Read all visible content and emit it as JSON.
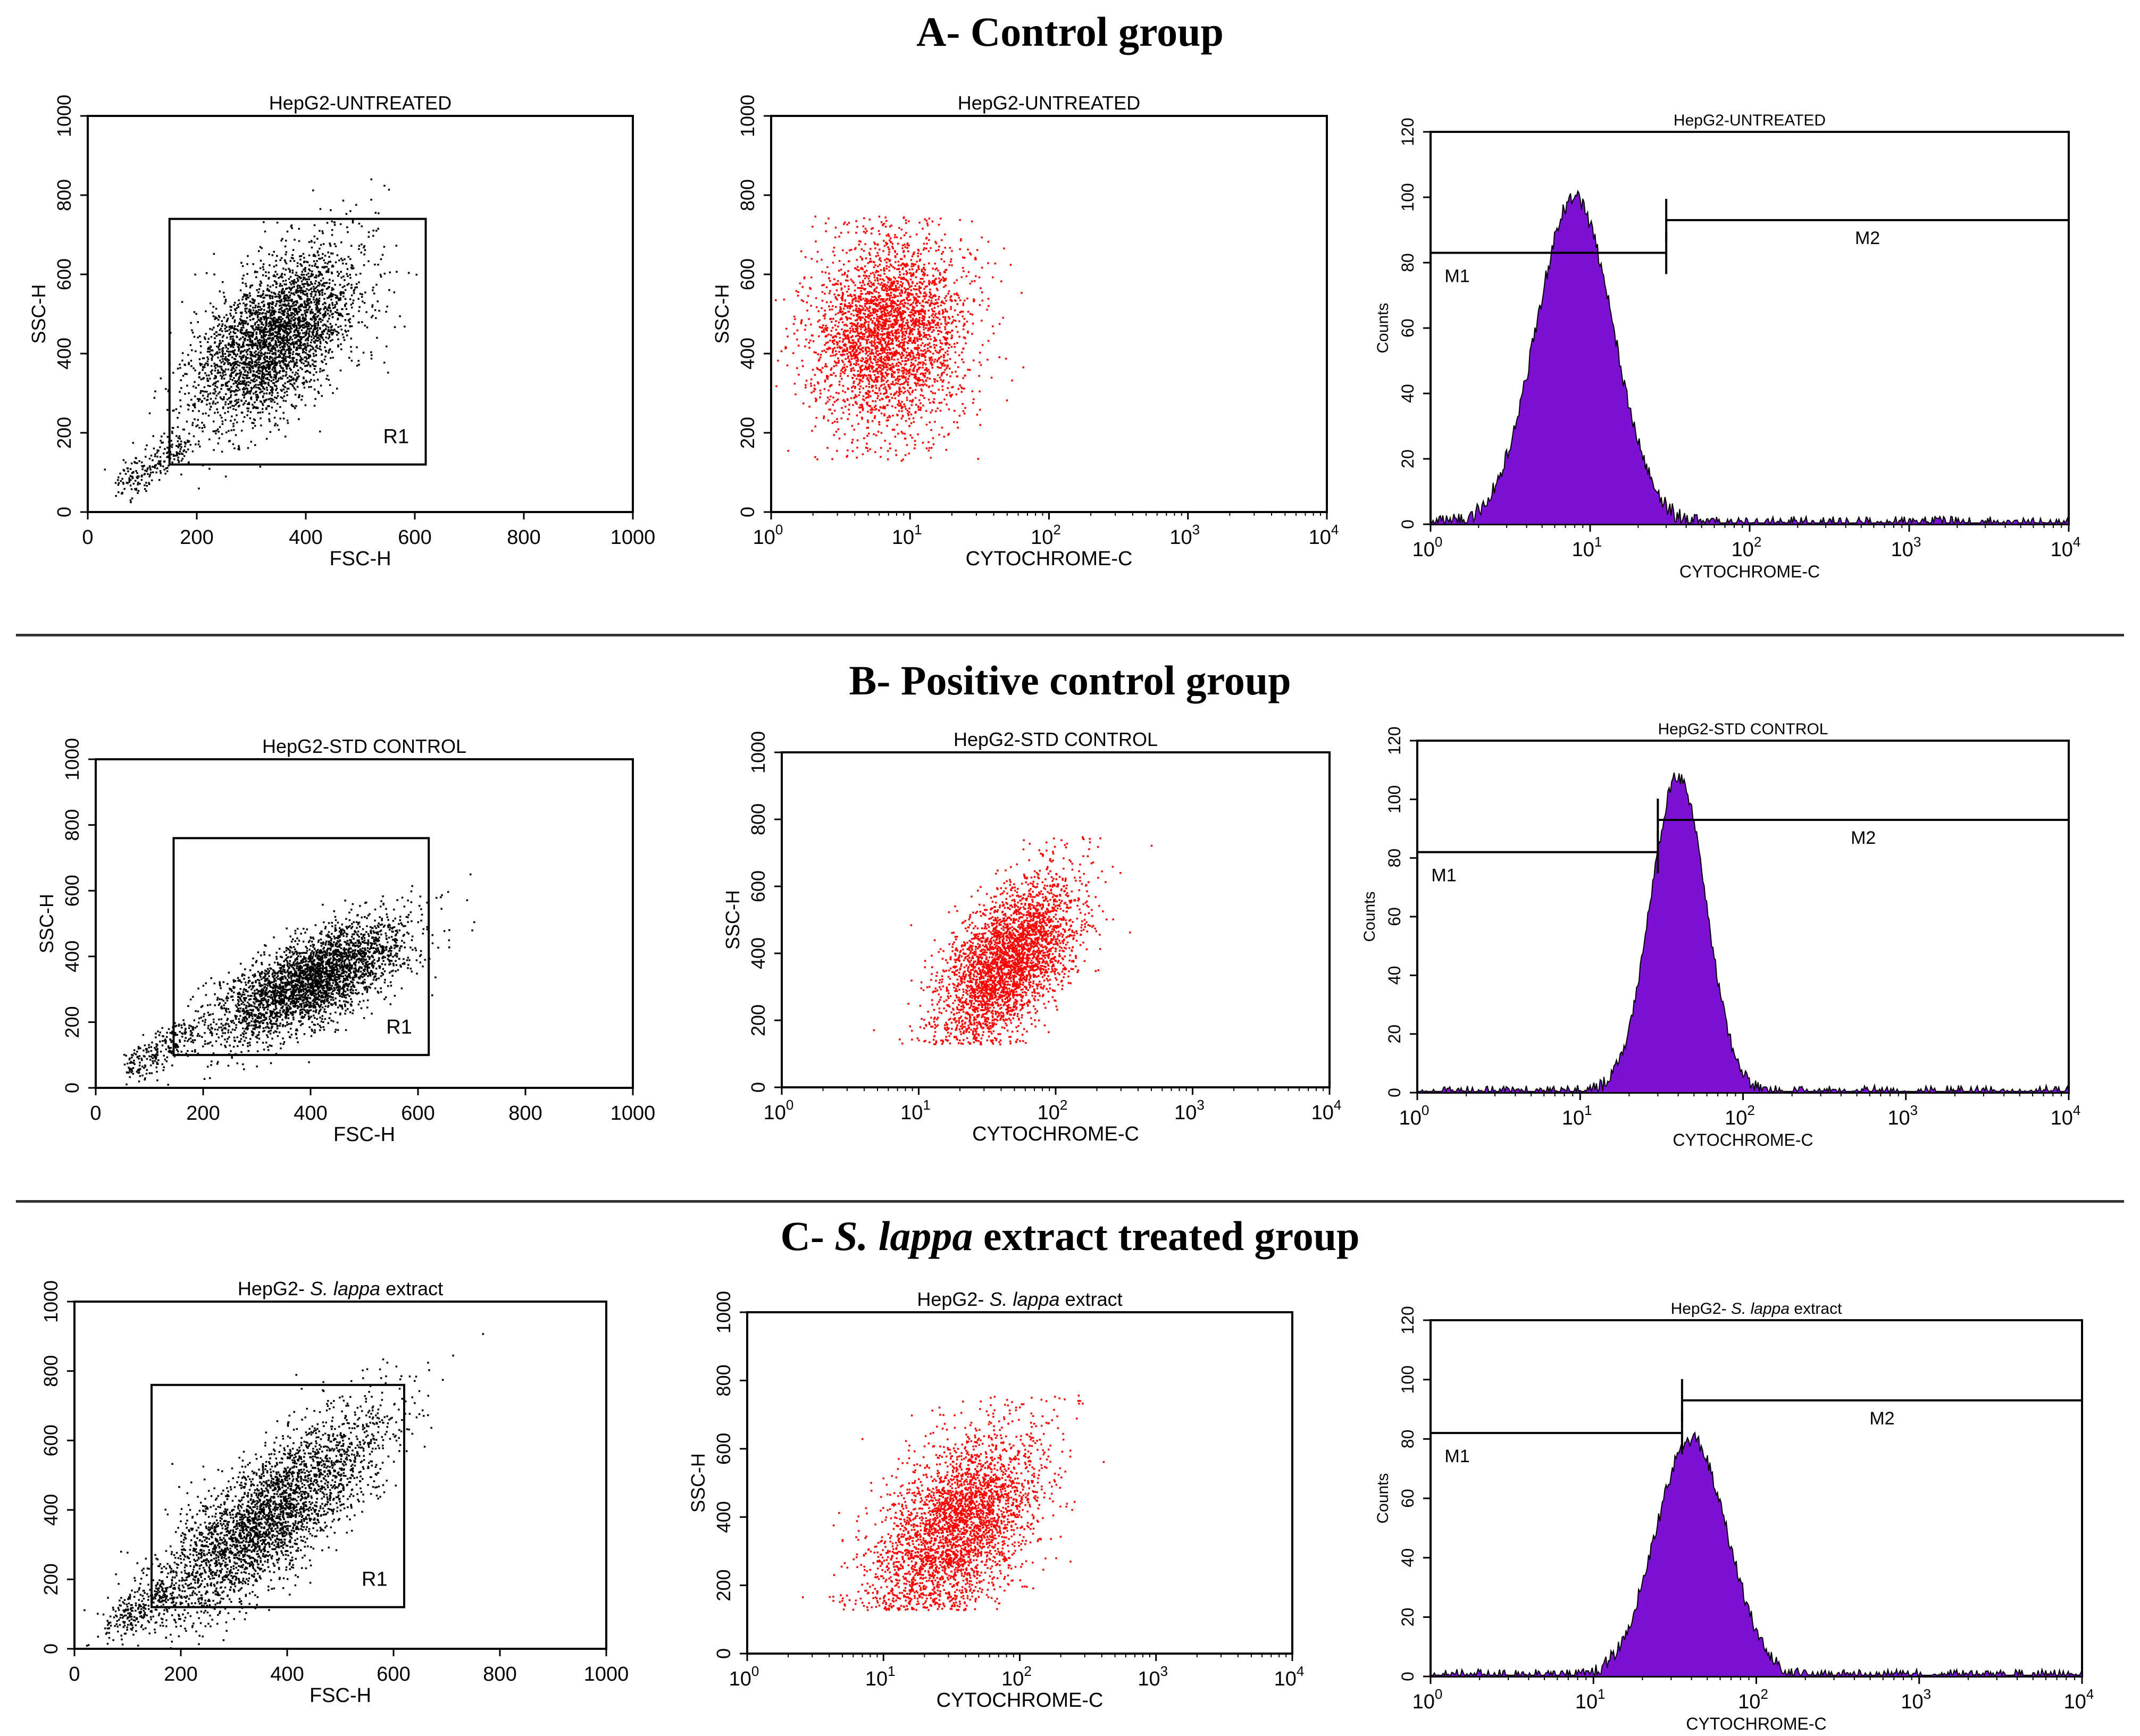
{
  "figure": {
    "accent_dot_color": "#ff0000",
    "fill_color": "#7e10d4",
    "sections": [
      {
        "title": "A- Control group",
        "panels": [
          {
            "type": "scatter",
            "title": "HepG2-UNTREATED",
            "xlabel": "FSC-H",
            "ylabel": "SSC-H",
            "xscale": "linear",
            "xlim": [
              0,
              1000
            ],
            "ylim": [
              0,
              1000
            ],
            "xticks": [
              "0",
              "200",
              "400",
              "600",
              "800",
              "1000"
            ],
            "yticks": [
              "0",
              "200",
              "400",
              "600",
              "800",
              "1000"
            ],
            "gate": {
              "label": "R1",
              "x": [
                150,
                620
              ],
              "y": [
                120,
                740
              ]
            },
            "cluster": {
              "center": [
                340,
                440
              ],
              "spread": [
                75,
                110
              ],
              "corr": 0.55
            },
            "color": "#000000"
          },
          {
            "type": "scatter",
            "title": "HepG2-UNTREATED",
            "xlabel": "CYTOCHROME-C",
            "ylabel": "SSC-H",
            "xscale": "log",
            "xlim": [
              1,
              10000
            ],
            "ylim": [
              0,
              1000
            ],
            "xticks": [
              "10",
              "10",
              "10",
              "10",
              "10"
            ],
            "xtick_exp": [
              "0",
              "1",
              "2",
              "3",
              "4"
            ],
            "yticks": [
              "0",
              "200",
              "400",
              "600",
              "800",
              "1000"
            ],
            "cluster": {
              "center": [
                7,
                450
              ],
              "spread": [
                0.28,
                120
              ],
              "corr": 0.05,
              "ymax": 750
            },
            "color": "#ff0000"
          },
          {
            "type": "histogram",
            "title": "HepG2-UNTREATED",
            "xlabel": "CYTOCHROME-C",
            "ylabel": "Counts",
            "xlim": [
              1,
              10000
            ],
            "ylim": [
              0,
              120
            ],
            "xticks": [
              "10",
              "10",
              "10",
              "10",
              "10"
            ],
            "xtick_exp": [
              "0",
              "1",
              "2",
              "3",
              "4"
            ],
            "yticks": [
              "0",
              "20",
              "40",
              "60",
              "80",
              "100",
              "120"
            ],
            "peak": {
              "center": 8,
              "height": 100,
              "width": 0.24
            },
            "markers": [
              {
                "label": "M1",
                "from": 1,
                "to": 30,
                "level": 83
              },
              {
                "label": "M2",
                "from": 30,
                "to": 10000,
                "level": 93
              }
            ]
          }
        ]
      },
      {
        "title": "B- Positive control group",
        "panels": [
          {
            "type": "scatter",
            "title": "HepG2-STD CONTROL",
            "xlabel": "FSC-H",
            "ylabel": "SSC-H",
            "xscale": "linear",
            "xlim": [
              0,
              1000
            ],
            "ylim": [
              0,
              1000
            ],
            "xticks": [
              "0",
              "200",
              "400",
              "600",
              "800",
              "1000"
            ],
            "yticks": [
              "0",
              "200",
              "400",
              "600",
              "800",
              "1000"
            ],
            "gate": {
              "label": "R1",
              "x": [
                145,
                620
              ],
              "y": [
                100,
                760
              ]
            },
            "cluster": {
              "center": [
                400,
                330
              ],
              "spread": [
                90,
                90
              ],
              "corr": 0.7
            },
            "color": "#000000"
          },
          {
            "type": "scatter",
            "title": "HepG2-STD CONTROL",
            "xlabel": "CYTOCHROME-C",
            "ylabel": "SSC-H",
            "xscale": "log",
            "xlim": [
              1,
              10000
            ],
            "ylim": [
              0,
              1000
            ],
            "xticks": [
              "10",
              "10",
              "10",
              "10",
              "10"
            ],
            "xtick_exp": [
              "0",
              "1",
              "2",
              "3",
              "4"
            ],
            "yticks": [
              "0",
              "200",
              "400",
              "600",
              "800",
              "1000"
            ],
            "cluster": {
              "center": [
                45,
                380
              ],
              "spread": [
                0.25,
                120
              ],
              "corr": 0.55,
              "ymax": 750
            },
            "color": "#ff0000"
          },
          {
            "type": "histogram",
            "title": "HepG2-STD CONTROL",
            "xlabel": "CYTOCHROME-C",
            "ylabel": "Counts",
            "xlim": [
              1,
              10000
            ],
            "ylim": [
              0,
              120
            ],
            "xticks": [
              "10",
              "10",
              "10",
              "10",
              "10"
            ],
            "xtick_exp": [
              "0",
              "1",
              "2",
              "3",
              "4"
            ],
            "yticks": [
              "0",
              "20",
              "40",
              "60",
              "80",
              "100",
              "120"
            ],
            "peak": {
              "center": 40,
              "height": 108,
              "width": 0.17
            },
            "markers": [
              {
                "label": "M1",
                "from": 1,
                "to": 30,
                "level": 82
              },
              {
                "label": "M2",
                "from": 30,
                "to": 10000,
                "level": 93
              }
            ]
          }
        ]
      },
      {
        "title": "C- S. lappa extract treated group",
        "title_parts": [
          "C- ",
          "S. lappa",
          " extract treated group"
        ],
        "panels": [
          {
            "type": "scatter",
            "title": "HepG2- S. lappa extract",
            "title_parts": [
              "HepG2- ",
              "S. lappa",
              " extract"
            ],
            "xlabel": "FSC-H",
            "ylabel": "",
            "xscale": "linear",
            "xlim": [
              0,
              1000
            ],
            "ylim": [
              0,
              1000
            ],
            "xticks": [
              "0",
              "200",
              "400",
              "600",
              "800",
              "1000"
            ],
            "yticks": [
              "0",
              "200",
              "400",
              "600",
              "800",
              "1000"
            ],
            "gate": {
              "label": "R1",
              "x": [
                145,
                620
              ],
              "y": [
                120,
                760
              ]
            },
            "cluster": {
              "center": [
                360,
                380
              ],
              "spread": [
                110,
                150
              ],
              "corr": 0.8
            },
            "color": "#000000"
          },
          {
            "type": "scatter",
            "title": "HepG2- S. lappa extract",
            "title_parts": [
              "HepG2- ",
              "S. lappa",
              " extract"
            ],
            "xlabel": "CYTOCHROME-C",
            "ylabel": "SSC-H",
            "xscale": "log",
            "xlim": [
              1,
              10000
            ],
            "ylim": [
              0,
              1000
            ],
            "xticks": [
              "10",
              "10",
              "10",
              "10",
              "10"
            ],
            "xtick_exp": [
              "0",
              "1",
              "2",
              "3",
              "4"
            ],
            "yticks": [
              "0",
              "200",
              "400",
              "600",
              "800",
              "1000"
            ],
            "cluster": {
              "center": [
                35,
                380
              ],
              "spread": [
                0.3,
                140
              ],
              "corr": 0.5,
              "ymax": 760
            },
            "color": "#ff0000"
          },
          {
            "type": "histogram",
            "title": "HepG2- S. lappa extract",
            "title_parts": [
              "HepG2- ",
              "S. lappa",
              " extract"
            ],
            "xlabel": "CYTOCHROME-C",
            "ylabel": "Counts",
            "xlim": [
              1,
              10000
            ],
            "ylim": [
              0,
              120
            ],
            "xticks": [
              "10",
              "10",
              "10",
              "10",
              "10"
            ],
            "xtick_exp": [
              "0",
              "1",
              "2",
              "3",
              "4"
            ],
            "yticks": [
              "0",
              "20",
              "40",
              "60",
              "80",
              "100",
              "120"
            ],
            "peak": {
              "center": 40,
              "height": 80,
              "width": 0.22
            },
            "markers": [
              {
                "label": "M1",
                "from": 1,
                "to": 35,
                "level": 82
              },
              {
                "label": "M2",
                "from": 35,
                "to": 10000,
                "level": 93
              }
            ]
          }
        ]
      }
    ]
  },
  "chart_data": [
    {
      "type": "scatter",
      "title": "HepG2-UNTREATED",
      "xlabel": "FSC-H",
      "ylabel": "SSC-H",
      "xlim": [
        0,
        1000
      ],
      "ylim": [
        0,
        1000
      ],
      "gate": "R1",
      "gate_x": [
        150,
        620
      ],
      "gate_y": [
        120,
        740
      ]
    },
    {
      "type": "scatter",
      "title": "HepG2-UNTREATED",
      "xlabel": "CYTOCHROME-C",
      "ylabel": "SSC-H",
      "xlim": [
        1,
        10000
      ],
      "ylim": [
        0,
        1000
      ],
      "xscale": "log"
    },
    {
      "type": "histogram",
      "title": "HepG2-UNTREATED",
      "xlabel": "CYTOCHROME-C",
      "ylabel": "Counts",
      "xlim": [
        1,
        10000
      ],
      "ylim": [
        0,
        120
      ],
      "peak_x": 8,
      "peak_counts": 100,
      "markers": {
        "M1": [
          1,
          30
        ],
        "M2": [
          30,
          10000
        ]
      }
    },
    {
      "type": "scatter",
      "title": "HepG2-STD CONTROL",
      "xlabel": "FSC-H",
      "ylabel": "SSC-H",
      "xlim": [
        0,
        1000
      ],
      "ylim": [
        0,
        1000
      ],
      "gate": "R1",
      "gate_x": [
        145,
        620
      ],
      "gate_y": [
        100,
        760
      ]
    },
    {
      "type": "scatter",
      "title": "HepG2-STD CONTROL",
      "xlabel": "CYTOCHROME-C",
      "ylabel": "SSC-H",
      "xlim": [
        1,
        10000
      ],
      "ylim": [
        0,
        1000
      ],
      "xscale": "log"
    },
    {
      "type": "histogram",
      "title": "HepG2-STD CONTROL",
      "xlabel": "CYTOCHROME-C",
      "ylabel": "Counts",
      "xlim": [
        1,
        10000
      ],
      "ylim": [
        0,
        120
      ],
      "peak_x": 40,
      "peak_counts": 108,
      "markers": {
        "M1": [
          1,
          30
        ],
        "M2": [
          30,
          10000
        ]
      }
    },
    {
      "type": "scatter",
      "title": "HepG2- S. lappa extract",
      "xlabel": "FSC-H",
      "ylabel": "",
      "xlim": [
        0,
        1000
      ],
      "ylim": [
        0,
        1000
      ],
      "gate": "R1",
      "gate_x": [
        145,
        620
      ],
      "gate_y": [
        120,
        760
      ]
    },
    {
      "type": "scatter",
      "title": "HepG2- S. lappa extract",
      "xlabel": "CYTOCHROME-C",
      "ylabel": "SSC-H",
      "xlim": [
        1,
        10000
      ],
      "ylim": [
        0,
        1000
      ],
      "xscale": "log"
    },
    {
      "type": "histogram",
      "title": "HepG2- S. lappa extract",
      "xlabel": "CYTOCHROME-C",
      "ylabel": "Counts",
      "xlim": [
        1,
        10000
      ],
      "ylim": [
        0,
        120
      ],
      "peak_x": 40,
      "peak_counts": 80,
      "markers": {
        "M1": [
          1,
          35
        ],
        "M2": [
          35,
          10000
        ]
      }
    }
  ]
}
